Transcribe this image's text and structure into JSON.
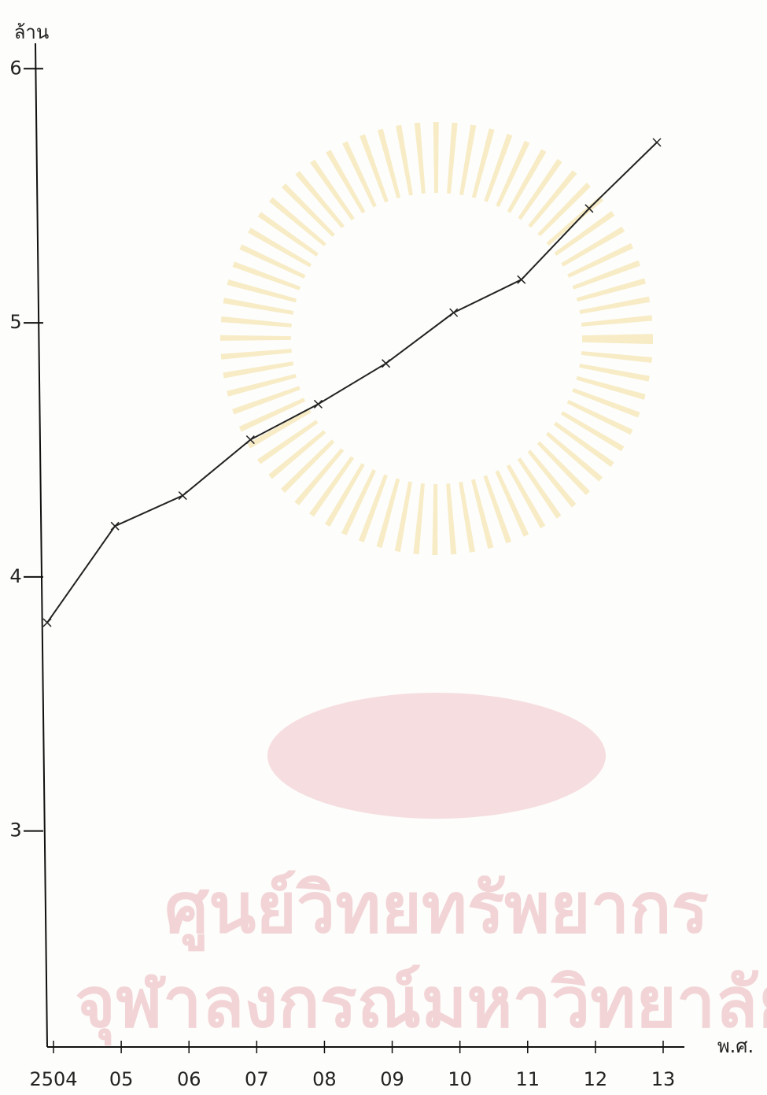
{
  "chart_data": {
    "type": "line",
    "y_label": "ล้าน",
    "x_label": "พ.ศ.",
    "categories": [
      "2504",
      "05",
      "06",
      "07",
      "08",
      "09",
      "10",
      "11",
      "12",
      "13"
    ],
    "values": [
      3.82,
      4.2,
      4.32,
      4.54,
      4.68,
      4.84,
      5.04,
      5.17,
      5.45,
      5.71
    ],
    "color": "#222222",
    "ylim": [
      2.15,
      6.1
    ],
    "yticks": [
      3,
      4,
      5,
      6
    ],
    "grid": false,
    "watermark": [
      "ศูนย์วิทยทรัพยากร",
      "จุฬาลงกรณ์มหาวิทยาลัย"
    ]
  }
}
